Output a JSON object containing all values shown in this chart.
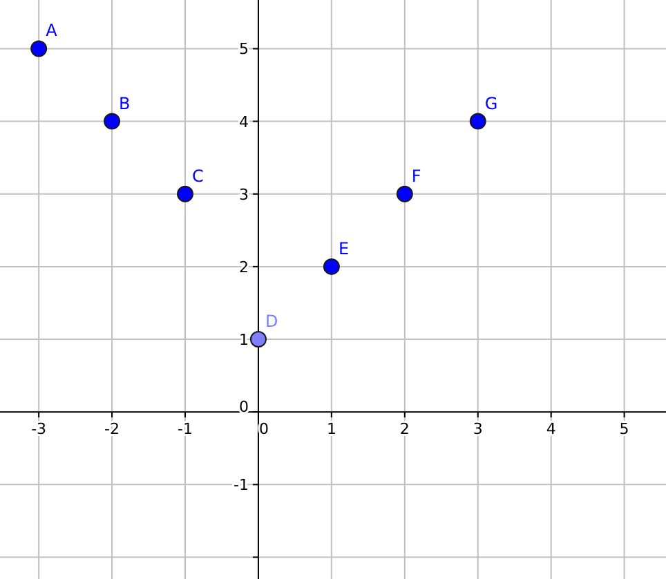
{
  "chart_data": {
    "type": "scatter",
    "x": [
      -3,
      -2,
      -1,
      0,
      1,
      2,
      3
    ],
    "values": [
      5,
      4,
      3,
      1,
      2,
      3,
      4
    ],
    "colors": [
      "#0000ff",
      "#0000ff",
      "#0000ff",
      "#7f7fff",
      "#0000ff",
      "#0000ff",
      "#0000ff"
    ],
    "marker": "circle",
    "grid": true,
    "xlim": [
      -3.53,
      5.57
    ],
    "ylim": [
      -2.3,
      5.67
    ],
    "xticks": [
      -3,
      -2,
      -1,
      0,
      1,
      2,
      3,
      4,
      5
    ],
    "yticks": [
      {
        "value": -2,
        "label": null
      },
      -1,
      0,
      1,
      2,
      3,
      4,
      5
    ],
    "annotations": [
      {
        "text": "A",
        "x": -3,
        "y": 5
      },
      {
        "text": "B",
        "x": -2,
        "y": 4
      },
      {
        "text": "C",
        "x": -1,
        "y": 3
      },
      {
        "text": "D",
        "x": 0,
        "y": 1
      },
      {
        "text": "E",
        "x": 1,
        "y": 2
      },
      {
        "text": "F",
        "x": 2,
        "y": 3
      },
      {
        "text": "G",
        "x": 3,
        "y": 4
      }
    ]
  }
}
